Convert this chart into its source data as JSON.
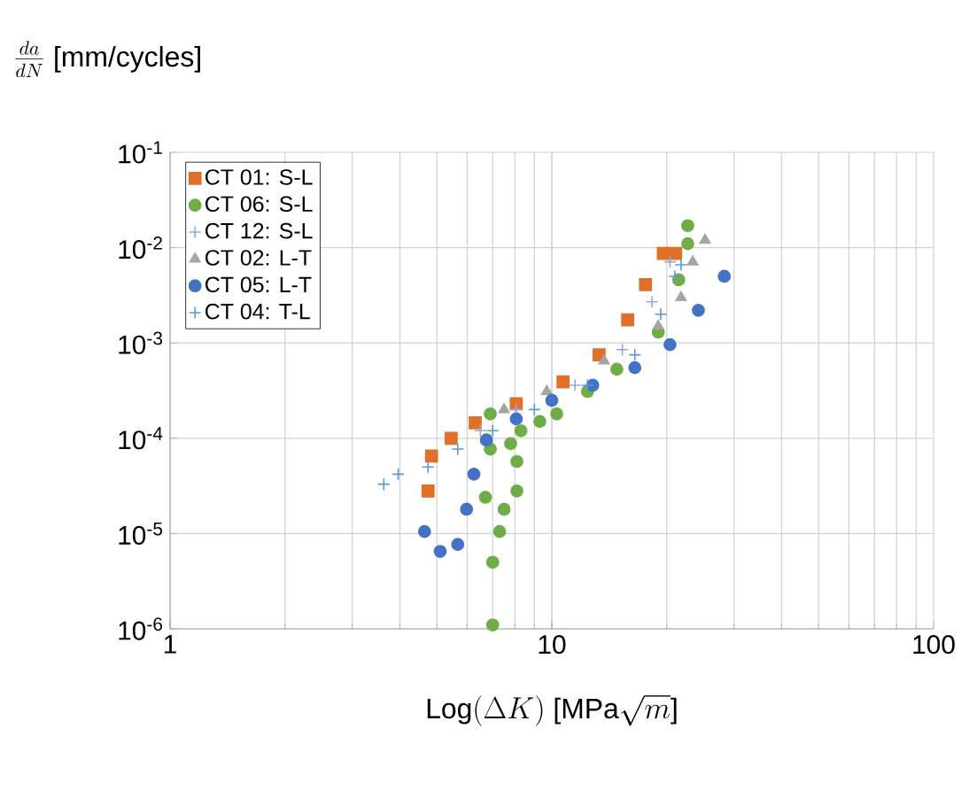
{
  "chart_data": {
    "type": "scatter",
    "xlabel": "\\mbox{Log}(\\Delta K)\\ \\mbox{[MPa}\\sqrt{m}\\mbox{]}",
    "ylabel": "\\frac{da}{dN}\\ \\mbox{[mm/cycles]}",
    "log": "xy",
    "grid": true,
    "legend": "top left",
    "xlim": [
      1,
      100
    ],
    "xticks": [
      1,
      10,
      100
    ],
    "ylim": [
      1e-06,
      0.1
    ],
    "yticks": [
      {
        "value": 1e-06,
        "label": "10$^{-6}$"
      },
      {
        "value": 1e-05,
        "label": "10$^{-5}$"
      },
      {
        "value": 0.0001,
        "label": "10$^{-4}$"
      },
      {
        "value": 0.001,
        "label": "10$^{-3}$"
      },
      {
        "value": 0.01,
        "label": "10$^{-2}$"
      },
      {
        "value": 0.1,
        "label": "10$^{-1}$"
      }
    ],
    "series": [
      {
        "name": "CT 01: S-L",
        "color": "#e07028",
        "marker": "square",
        "x": [
          4.74,
          4.84,
          5.45,
          6.3,
          8.07,
          10.7,
          13.3,
          15.8,
          17.6,
          19.6,
          21.1
        ],
        "values": [
          2.8e-05,
          6.5e-05,
          0.0001,
          0.000145,
          0.00023,
          0.00039,
          0.00075,
          0.00175,
          0.0041,
          0.0087,
          0.0087
        ]
      },
      {
        "name": "CT 06: S-L",
        "color": "#70ad47",
        "marker": "circle",
        "x": [
          22.7,
          22.7,
          21.5,
          19,
          14.8,
          12.4,
          10.3,
          9.3,
          8.3,
          7.8,
          8.1,
          8.1,
          7.5,
          7.3,
          7.0,
          7.0,
          6.9,
          6.7,
          6.9
        ],
        "values": [
          0.017,
          0.011,
          0.0046,
          0.0013,
          0.00053,
          0.00031,
          0.00018,
          0.00015,
          0.00012,
          8.8e-05,
          5.7e-05,
          2.8e-05,
          1.8e-05,
          1.05e-05,
          5e-06,
          1.1e-06,
          0.00018,
          2.4e-05,
          7.7e-05
        ]
      },
      {
        "name": "CT 12: S-L",
        "color": "#8faadc",
        "marker": "cross",
        "x": [
          6.5,
          8.07,
          11.5,
          15.3,
          18.3,
          20.4
        ],
        "values": [
          0.00012,
          0.0002,
          0.00036,
          0.00085,
          0.0027,
          0.0071
        ]
      },
      {
        "name": "CT 02: L-T",
        "color": "#a5a5a5",
        "marker": "triangle",
        "x": [
          7.5,
          9.7,
          13.7,
          19,
          21.8,
          23.4,
          25.2
        ],
        "values": [
          0.0002,
          0.00031,
          0.00065,
          0.0015,
          0.003,
          0.0071,
          0.012
        ]
      },
      {
        "name": "CT 05: L-T",
        "color": "#4472c4",
        "marker": "circle",
        "x": [
          4.64,
          5.1,
          5.67,
          5.98,
          6.25,
          6.74,
          8.07,
          10,
          12.8,
          16.5,
          20.4,
          24.2,
          28.3
        ],
        "values": [
          1.05e-05,
          6.5e-06,
          7.7e-06,
          1.8e-05,
          4.2e-05,
          9.6e-05,
          0.00016,
          0.00025,
          0.00036,
          0.00055,
          0.00096,
          0.0022,
          0.005
        ]
      },
      {
        "name": "CT 04: T-L",
        "color": "#5b9bd5",
        "marker": "cross",
        "x": [
          3.63,
          3.96,
          4.74,
          5.67,
          7.0,
          9,
          12.4,
          16.5,
          19.3,
          21,
          21.8
        ],
        "values": [
          3.3e-05,
          4.2e-05,
          5e-05,
          7.7e-05,
          0.00012,
          0.0002,
          0.00036,
          0.00075,
          0.002,
          0.005,
          0.0066
        ]
      }
    ]
  }
}
